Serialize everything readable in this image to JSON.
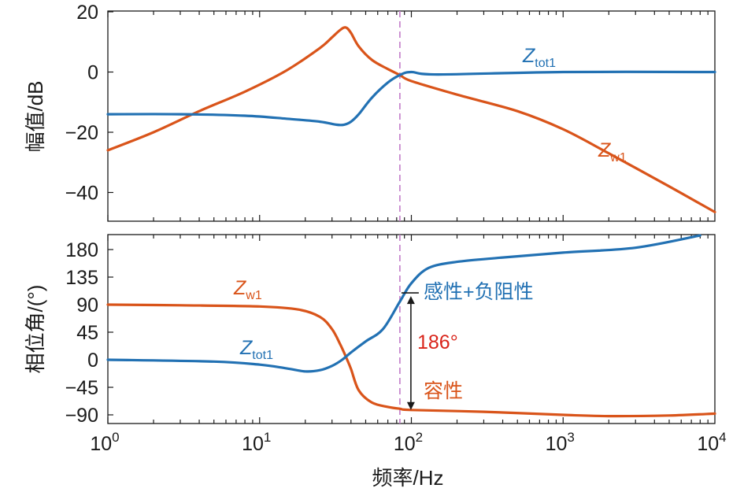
{
  "chart_data": [
    {
      "type": "line",
      "xscale": "log",
      "xlim": [
        1,
        10000
      ],
      "ylim": [
        -50,
        20
      ],
      "ylabel": "幅值/dB",
      "yticks": [
        20,
        0,
        -20,
        -40
      ],
      "ytick_labels": [
        "20",
        "0",
        "−20",
        "−40"
      ],
      "grid": false,
      "series": [
        {
          "name": "Zw1",
          "color": "#d9541a",
          "x": [
            1,
            2,
            4,
            8,
            15,
            25,
            30,
            34,
            37,
            40,
            45,
            55,
            70,
            84,
            100,
            200,
            500,
            1000,
            2000,
            5000,
            10000
          ],
          "y": [
            -26,
            -20,
            -13,
            -6.5,
            0.5,
            8,
            11.5,
            14,
            14.8,
            13,
            8.5,
            4,
            1,
            -1,
            -3,
            -7.5,
            -13,
            -19,
            -27,
            -38,
            -46.5
          ]
        },
        {
          "name": "Ztot1",
          "color": "#2271b3",
          "x": [
            1,
            3,
            8,
            15,
            25,
            32,
            36,
            40,
            45,
            55,
            70,
            84,
            100,
            150,
            1000,
            10000
          ],
          "y": [
            -14,
            -14,
            -14.5,
            -15.5,
            -16.5,
            -17.5,
            -17.5,
            -16.5,
            -14,
            -8.5,
            -3.5,
            -1,
            0,
            -0.8,
            0,
            0
          ]
        }
      ],
      "annotations": [
        {
          "label_main": "Z",
          "label_sub": "tot1",
          "color": "#2271b3"
        },
        {
          "label_main": "Z",
          "label_sub": "w1",
          "color": "#d9541a"
        }
      ],
      "vline": {
        "x": 84,
        "color": "#c27bc8",
        "style": "dashed"
      }
    },
    {
      "type": "line",
      "xscale": "log",
      "xlim": [
        1,
        10000
      ],
      "ylim": [
        -100,
        200
      ],
      "xlabel": "频率/Hz",
      "ylabel": "相位角/(°)",
      "yticks": [
        180,
        135,
        90,
        45,
        0,
        -45,
        -90
      ],
      "ytick_labels": [
        "180",
        "135",
        "90",
        "45",
        "0",
        "−45",
        "−90"
      ],
      "xticks": [
        1,
        10,
        100,
        1000,
        10000
      ],
      "xtick_labels": [
        {
          "base": "10",
          "exp": "0"
        },
        {
          "base": "10",
          "exp": "1"
        },
        {
          "base": "10",
          "exp": "2"
        },
        {
          "base": "10",
          "exp": "3"
        },
        {
          "base": "10",
          "exp": "4"
        }
      ],
      "grid": false,
      "series": [
        {
          "name": "Zw1",
          "color": "#d9541a",
          "x": [
            1,
            3,
            10,
            18,
            25,
            30,
            34,
            37,
            40,
            45,
            55,
            70,
            84,
            100,
            300,
            1000,
            2000,
            5000,
            10000
          ],
          "y": [
            90,
            89,
            87,
            82,
            70,
            50,
            25,
            5,
            -15,
            -50,
            -70,
            -77,
            -80,
            -82,
            -85,
            -90,
            -92,
            -91,
            -88
          ]
        },
        {
          "name": "Ztot1",
          "color": "#2271b3",
          "x": [
            1,
            5,
            10,
            15,
            20,
            25,
            30,
            35,
            40,
            50,
            65,
            84,
            100,
            130,
            200,
            400,
            1000,
            3000,
            8000
          ],
          "y": [
            0,
            -3,
            -8,
            -14,
            -19,
            -17,
            -10,
            0,
            12,
            30,
            50,
            95,
            125,
            150,
            160,
            167,
            175,
            183,
            203
          ]
        }
      ],
      "annotations": [
        {
          "label_main": "Z",
          "label_sub": "w1",
          "color": "#d9541a"
        },
        {
          "label_main": "Z",
          "label_sub": "tot1",
          "color": "#2271b3"
        },
        {
          "text": "感性+负阻性",
          "color": "#2271b3"
        },
        {
          "text": "186°",
          "color": "#d9241a"
        },
        {
          "text": "容性",
          "color": "#d9541a"
        }
      ],
      "vline": {
        "x": 84,
        "color": "#c27bc8",
        "style": "dashed"
      },
      "arrow": {
        "x": 84,
        "y_from": 104,
        "y_to": -82
      }
    }
  ]
}
